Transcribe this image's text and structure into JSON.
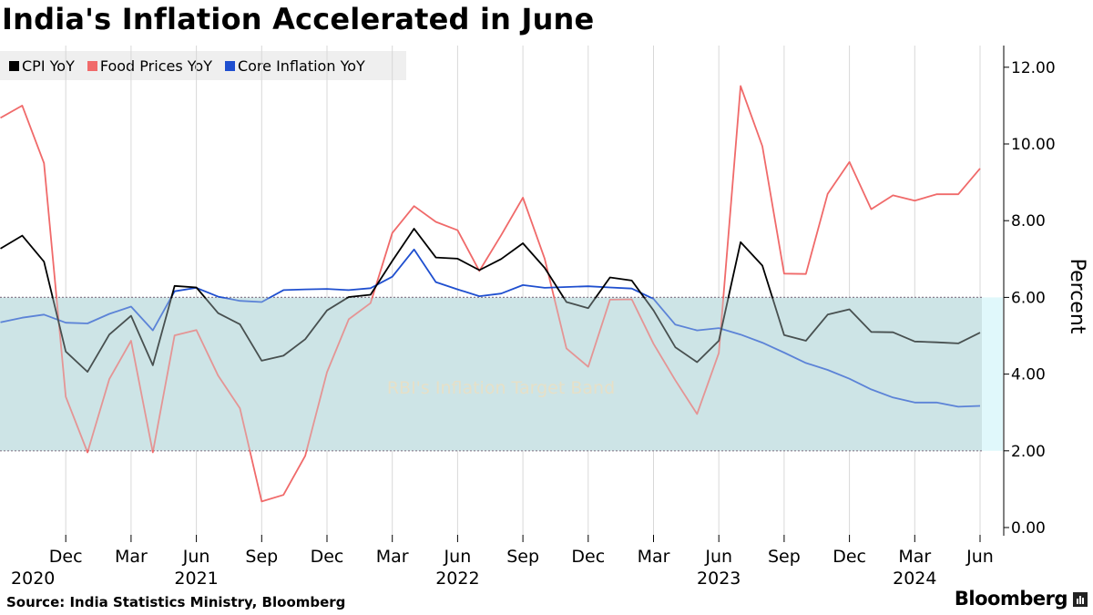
{
  "title": "India's Inflation Accelerated in June",
  "source": "Source: India Statistics Ministry, Bloomberg",
  "brand": "Bloomberg",
  "colors": {
    "cpi": "#000000",
    "food": "#f06a6a",
    "core": "#1f4fcf",
    "band_fill": "#cde4e6",
    "band_fill_edge": "#e0f8fb",
    "band_label": "#f3ddb8",
    "grid": "#d8d8d8",
    "axis": "#000000"
  },
  "legend": [
    {
      "label": "CPI YoY",
      "color": "#000000"
    },
    {
      "label": "Food Prices YoY",
      "color": "#f06a6a"
    },
    {
      "label": "Core Inflation YoY",
      "color": "#1f4fcf"
    }
  ],
  "chart_data": {
    "type": "line",
    "title": "India's Inflation Accelerated in June",
    "ylabel": "Percent",
    "ylim": [
      0,
      12.5
    ],
    "yticks": [
      "0.00",
      "2.00",
      "4.00",
      "6.00",
      "8.00",
      "10.00",
      "12.00"
    ],
    "ytick_values": [
      0,
      2,
      4,
      6,
      8,
      10,
      12
    ],
    "grid": "vertical lines at quarterly ticks",
    "legend_position": "top-left",
    "x_start": "Sep 2020",
    "x_end": "Jun 2024",
    "x_months_count": 46,
    "xtick_labels": [
      {
        "month": "Dec",
        "year": "2020",
        "index": 3
      },
      {
        "month": "Mar",
        "year": "",
        "index": 6
      },
      {
        "month": "Jun",
        "year": "2021",
        "index": 9
      },
      {
        "month": "Sep",
        "year": "",
        "index": 12
      },
      {
        "month": "Dec",
        "year": "",
        "index": 15
      },
      {
        "month": "Mar",
        "year": "",
        "index": 18
      },
      {
        "month": "Jun",
        "year": "2022",
        "index": 21
      },
      {
        "month": "Sep",
        "year": "",
        "index": 24
      },
      {
        "month": "Dec",
        "year": "",
        "index": 27
      },
      {
        "month": "Mar",
        "year": "",
        "index": 30
      },
      {
        "month": "Jun",
        "year": "2023",
        "index": 33
      },
      {
        "month": "Sep",
        "year": "",
        "index": 36
      },
      {
        "month": "Dec",
        "year": "",
        "index": 39
      },
      {
        "month": "Mar",
        "year": "2024",
        "index": 42
      },
      {
        "month": "Jun",
        "year": "",
        "index": 45
      }
    ],
    "band": {
      "low": 2,
      "high": 6,
      "label": "RBI's Inflation Target Band"
    },
    "series": [
      {
        "name": "CPI YoY",
        "color": "#000000",
        "values": [
          7.27,
          7.61,
          6.93,
          4.59,
          4.06,
          5.03,
          5.52,
          4.23,
          6.3,
          6.26,
          5.59,
          5.3,
          4.35,
          4.48,
          4.91,
          5.66,
          6.01,
          6.07,
          6.95,
          7.79,
          7.04,
          7.01,
          6.71,
          7.0,
          7.41,
          6.77,
          5.88,
          5.72,
          6.52,
          6.44,
          5.66,
          4.7,
          4.31,
          4.87,
          7.44,
          6.83,
          5.02,
          4.87,
          5.55,
          5.69,
          5.1,
          5.09,
          4.85,
          4.83,
          4.8,
          5.08
        ]
      },
      {
        "name": "Food Prices YoY",
        "color": "#f06a6a",
        "values": [
          10.68,
          11.0,
          9.5,
          3.41,
          1.96,
          3.87,
          4.87,
          1.96,
          5.01,
          5.15,
          3.96,
          3.11,
          0.68,
          0.85,
          1.87,
          4.05,
          5.43,
          5.85,
          7.68,
          8.38,
          7.97,
          7.75,
          6.69,
          7.62,
          8.6,
          7.01,
          4.67,
          4.19,
          5.94,
          5.95,
          4.79,
          3.84,
          2.96,
          4.55,
          11.51,
          9.94,
          6.62,
          6.61,
          8.7,
          9.53,
          8.3,
          8.66,
          8.52,
          8.69,
          8.69,
          9.36
        ]
      },
      {
        "name": "Core Inflation YoY",
        "color": "#1f4fcf",
        "values": [
          5.35,
          5.47,
          5.55,
          5.34,
          5.32,
          5.57,
          5.76,
          5.14,
          6.16,
          6.25,
          6.02,
          5.91,
          5.88,
          6.19,
          6.21,
          6.22,
          6.19,
          6.24,
          6.54,
          7.25,
          6.4,
          6.21,
          6.03,
          6.1,
          6.32,
          6.25,
          6.27,
          6.29,
          6.26,
          6.23,
          5.96,
          5.29,
          5.14,
          5.2,
          5.03,
          4.82,
          4.56,
          4.29,
          4.11,
          3.88,
          3.6,
          3.39,
          3.26,
          3.26,
          3.15,
          3.17
        ]
      }
    ]
  }
}
